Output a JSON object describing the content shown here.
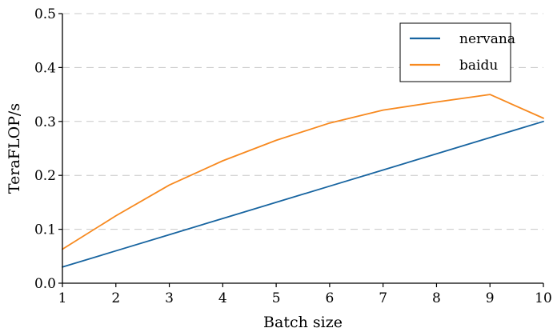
{
  "chart_data": {
    "type": "line",
    "title": "",
    "xlabel": "Batch size",
    "ylabel": "TeraFLOP/s",
    "x": [
      1,
      2,
      3,
      4,
      5,
      6,
      7,
      8,
      9,
      10
    ],
    "xlim": [
      1,
      10
    ],
    "ylim": [
      0,
      0.5
    ],
    "xticks": [
      "1",
      "2",
      "3",
      "4",
      "5",
      "6",
      "7",
      "8",
      "9",
      "10"
    ],
    "yticks": [
      "0.0",
      "0.1",
      "0.2",
      "0.3",
      "0.4",
      "0.5"
    ],
    "ytick_values": [
      0,
      0.1,
      0.2,
      0.3,
      0.4,
      0.5
    ],
    "grid": "horizontal-dashed",
    "legend_position": "top-right",
    "series": [
      {
        "name": "nervana",
        "color": "#1764a0",
        "values": [
          0.03,
          0.06,
          0.09,
          0.12,
          0.15,
          0.18,
          0.21,
          0.24,
          0.27,
          0.3
        ]
      },
      {
        "name": "baidu",
        "color": "#f7891f",
        "values": [
          0.063,
          0.125,
          0.182,
          0.227,
          0.265,
          0.297,
          0.321,
          0.336,
          0.35,
          0.306
        ]
      }
    ]
  }
}
